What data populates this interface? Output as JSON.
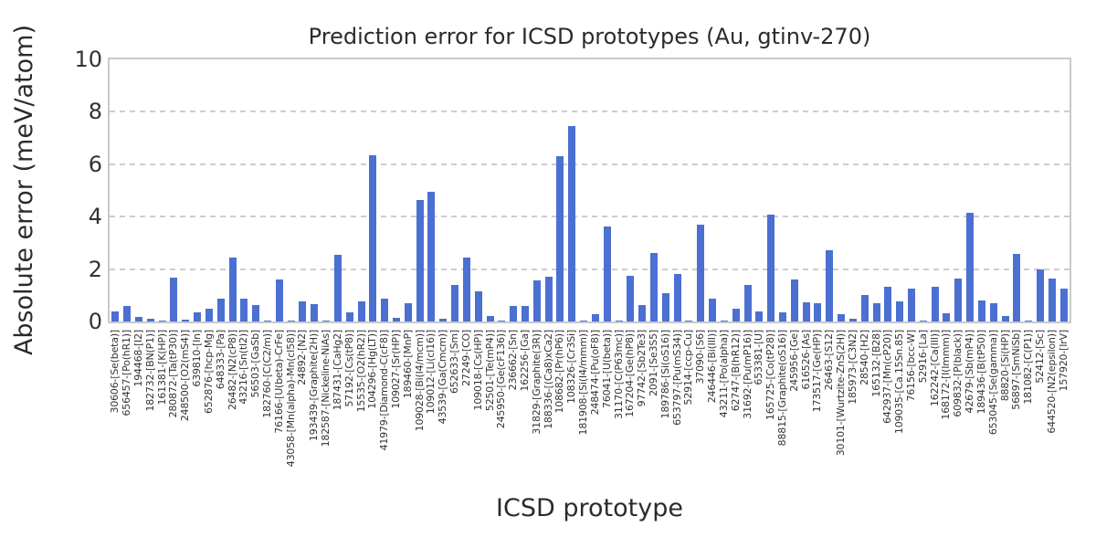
{
  "chart_data": {
    "type": "bar",
    "title": "Prediction error for ICSD prototypes (Au, gtinv-270)",
    "xlabel": "ICSD prototype",
    "ylabel": "Absolute error (meV/atom)",
    "ylim": [
      0,
      10
    ],
    "yticks": [
      0,
      2,
      4,
      6,
      8,
      10
    ],
    "grid": "horizontal dashed lines at y=2,4,6,8",
    "grid_values": [
      2,
      4,
      6,
      8
    ],
    "legend": "none",
    "bar_color": "#4b70d2",
    "categories": [
      "30606-[Se(beta)]",
      "656457-[Po(hR1)]",
      "194468-[I2]",
      "182732-[BN(P1)]",
      "161381-[K(HP)]",
      "280872-[Ta(tP30)]",
      "248500-[O2(mS4)]",
      "639810-[In]",
      "652876-[hcp-Mg]",
      "648333-[Pa]",
      "26482-[N2(cP8)]",
      "43216-[Sn(tI2)]",
      "56503-[GaSb]",
      "182760-[C(C2/m)]",
      "76166-[U(beta)-CrFe]",
      "43058-[Mn(alpha)-Mn(cI58)]",
      "24892-[N2]",
      "193439-[Graphite(2H)]",
      "182587-[Nickeline-NiAs]",
      "187431-[CaHg2]",
      "57192-[Cs(tP8)]",
      "15535-[O2(hR2)]",
      "104296-[Hg(LT)]",
      "41979-[Diamond-C(cF8)]",
      "109027-[Sr(HP)]",
      "189460-[MnP]",
      "109028-[Bi(I4/mcm)]",
      "109012-[Li(cI16)]",
      "43539-[Ga(Cmcm)]",
      "652633-[Sm]",
      "27249-[CO]",
      "109018-[Cs(HP)]",
      "52501-[Te(mP4)]",
      "245950-[Ge(cF136)]",
      "236662-[Sn]",
      "162256-[Ga]",
      "31829-[Graphite(3R)]",
      "188336-[(Ca8)xCa2]",
      "108682-[Pr(hP6)]",
      "108326-[Cr3Si]",
      "181908-[Si(I4/mmm)]",
      "248474-[Pu(oF8)]",
      "76041-[U(beta)]",
      "31170-[C(P63mc)]",
      "167204-[Ge(hP8)]",
      "97742-[Sb2Te3]",
      "2091-[Se3S5]",
      "189786-[Si(oS16)]",
      "653797-[Pu(mS34)]",
      "52914-[ccp-Cu]",
      "37090-[S6]",
      "246446-[Bi(III)]",
      "43211-[Po(alpha)]",
      "62747-[B(hR12)]",
      "31692-[Pu(mP16)]",
      "653381-[U]",
      "165725-[Co(tP28)]",
      "88815-[Graphite(oS16)]",
      "245956-[Ge]",
      "616526-[As]",
      "173517-[Ge(HP)]",
      "26463-[S12]",
      "30101-[Wurtzite-ZnS(2H)]",
      "185973-[C3N2]",
      "28540-[H2]",
      "165132-[B28]",
      "642937-[Mn(cP20)]",
      "109035-[Ca.15Sn.85]",
      "76156-[bcc-W]",
      "52916-[La]",
      "162242-[Ca(III)]",
      "168172-[I(Immm)]",
      "609832-[P(black)]",
      "42679-[Sb(mP4)]",
      "189436-[B(tP50)]",
      "653045-[Se(gamma)]",
      "88820-[Si(HP)]",
      "56897-[SmNiSb]",
      "181082-[C(P1)]",
      "52412-[Sc]",
      "644520-[N2(epsilon)]",
      "157920-[IrV]"
    ],
    "values": [
      0.4,
      0.58,
      0.16,
      0.12,
      0.03,
      1.68,
      0.08,
      0.35,
      0.49,
      0.87,
      2.45,
      0.87,
      0.64,
      0.02,
      1.62,
      0.05,
      0.78,
      0.67,
      0.05,
      2.56,
      0.36,
      0.77,
      6.35,
      0.88,
      0.14,
      0.71,
      4.65,
      4.95,
      0.1,
      1.4,
      2.45,
      1.15,
      0.21,
      0.02,
      0.6,
      0.61,
      1.58,
      1.72,
      6.3,
      7.45,
      0.05,
      0.29,
      3.62,
      0.02,
      1.75,
      0.63,
      2.62,
      1.09,
      1.8,
      0.02,
      3.7,
      0.88,
      0.03,
      0.48,
      1.4,
      0.4,
      4.08,
      0.34,
      1.61,
      0.72,
      0.69,
      2.73,
      0.29,
      0.09,
      1.01,
      0.71,
      1.34,
      0.77,
      1.25,
      0.02,
      1.34,
      0.32,
      1.63,
      4.16,
      0.79,
      0.71,
      0.2,
      2.58,
      0.05,
      1.97,
      1.63,
      1.26
    ]
  }
}
